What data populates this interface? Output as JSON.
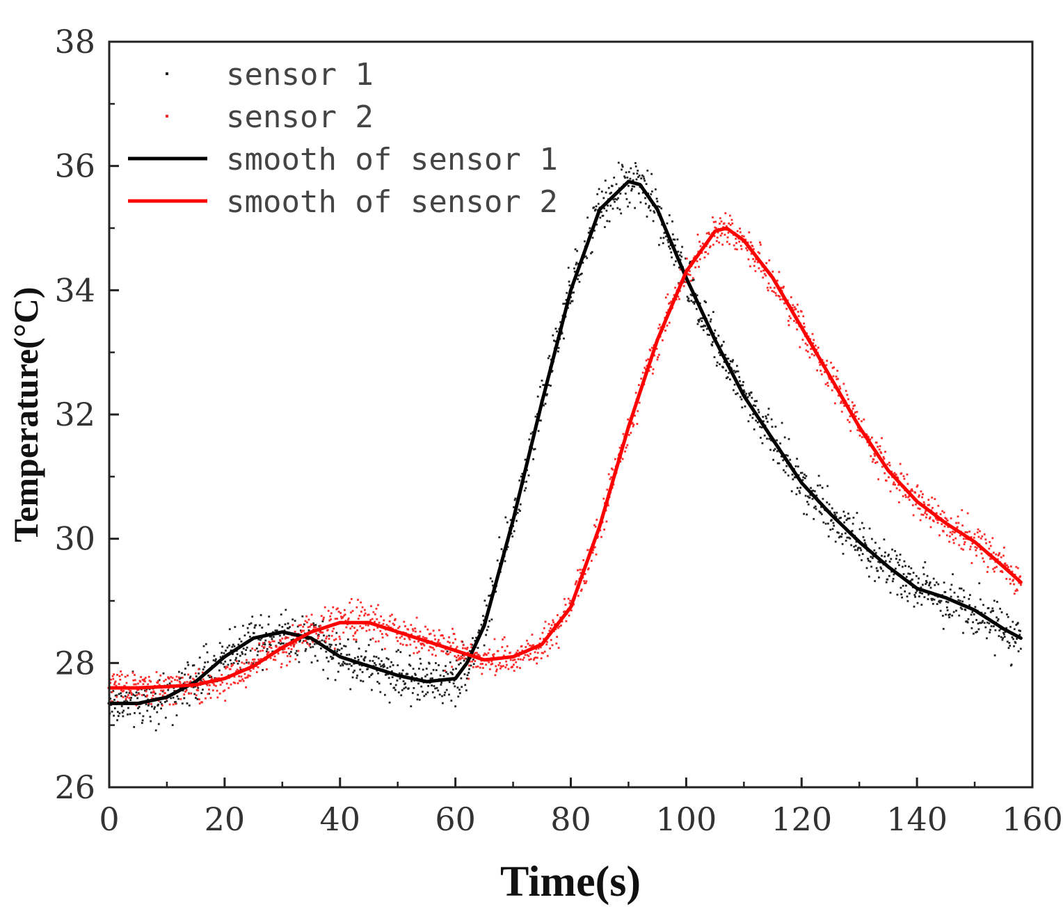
{
  "chart_data": {
    "type": "scatter",
    "title": "",
    "xlabel": "Time(s)",
    "ylabel": "Temperature(°C)",
    "xlim": [
      0,
      160
    ],
    "ylim": [
      26,
      38
    ],
    "x_ticks": [
      "0",
      "20",
      "40",
      "60",
      "80",
      "100",
      "120",
      "140",
      "160"
    ],
    "y_ticks": [
      "26",
      "28",
      "30",
      "32",
      "34",
      "36",
      "38"
    ],
    "grid": false,
    "legend_position": "top-left",
    "series": [
      {
        "name": "sensor 1",
        "kind": "scatter",
        "color": "#222222",
        "noise": 0.28,
        "x": [
          0,
          5,
          10,
          15,
          20,
          25,
          30,
          35,
          40,
          45,
          50,
          55,
          60,
          62,
          65,
          70,
          75,
          80,
          85,
          90,
          92,
          95,
          100,
          105,
          110,
          115,
          120,
          125,
          130,
          135,
          140,
          145,
          150,
          155,
          158
        ],
        "values": [
          27.35,
          27.35,
          27.45,
          27.7,
          28.1,
          28.4,
          28.5,
          28.4,
          28.1,
          27.95,
          27.8,
          27.7,
          27.75,
          28.0,
          28.6,
          30.3,
          32.2,
          34.0,
          35.3,
          35.75,
          35.7,
          35.3,
          34.2,
          33.2,
          32.3,
          31.6,
          30.9,
          30.4,
          29.95,
          29.55,
          29.2,
          29.05,
          28.85,
          28.55,
          28.4
        ]
      },
      {
        "name": "sensor 2",
        "kind": "scatter",
        "color": "#ff2a2a",
        "noise": 0.2,
        "x": [
          0,
          5,
          10,
          15,
          20,
          25,
          30,
          35,
          40,
          45,
          50,
          55,
          60,
          65,
          70,
          75,
          80,
          85,
          90,
          95,
          100,
          105,
          107,
          110,
          115,
          120,
          125,
          130,
          135,
          140,
          145,
          150,
          155,
          158
        ],
        "values": [
          27.6,
          27.6,
          27.62,
          27.65,
          27.75,
          27.95,
          28.25,
          28.5,
          28.65,
          28.65,
          28.5,
          28.35,
          28.2,
          28.05,
          28.1,
          28.3,
          28.9,
          30.2,
          31.8,
          33.2,
          34.3,
          34.95,
          35.0,
          34.8,
          34.2,
          33.4,
          32.6,
          31.8,
          31.1,
          30.6,
          30.25,
          29.95,
          29.55,
          29.3
        ]
      },
      {
        "name": "smooth of sensor 1",
        "kind": "line",
        "color": "#000000",
        "x": [
          0,
          5,
          10,
          15,
          20,
          25,
          30,
          35,
          40,
          45,
          50,
          55,
          60,
          62,
          65,
          70,
          75,
          80,
          85,
          90,
          92,
          95,
          100,
          105,
          110,
          115,
          120,
          125,
          130,
          135,
          140,
          145,
          150,
          155,
          158
        ],
        "values": [
          27.35,
          27.35,
          27.45,
          27.7,
          28.1,
          28.4,
          28.5,
          28.4,
          28.1,
          27.95,
          27.8,
          27.7,
          27.75,
          28.0,
          28.6,
          30.3,
          32.2,
          34.0,
          35.3,
          35.75,
          35.7,
          35.3,
          34.2,
          33.2,
          32.3,
          31.6,
          30.9,
          30.4,
          29.95,
          29.55,
          29.2,
          29.05,
          28.85,
          28.55,
          28.4
        ]
      },
      {
        "name": "smooth of sensor 2",
        "kind": "line",
        "color": "#ff0000",
        "x": [
          0,
          5,
          10,
          15,
          20,
          25,
          30,
          35,
          40,
          45,
          50,
          55,
          60,
          65,
          70,
          75,
          80,
          85,
          90,
          95,
          100,
          105,
          107,
          110,
          115,
          120,
          125,
          130,
          135,
          140,
          145,
          150,
          155,
          158
        ],
        "values": [
          27.6,
          27.6,
          27.62,
          27.65,
          27.75,
          27.95,
          28.25,
          28.5,
          28.65,
          28.65,
          28.5,
          28.35,
          28.2,
          28.05,
          28.1,
          28.3,
          28.9,
          30.2,
          31.8,
          33.2,
          34.3,
          34.95,
          35.0,
          34.8,
          34.2,
          33.4,
          32.6,
          31.8,
          31.1,
          30.6,
          30.25,
          29.95,
          29.55,
          29.3
        ]
      }
    ]
  }
}
